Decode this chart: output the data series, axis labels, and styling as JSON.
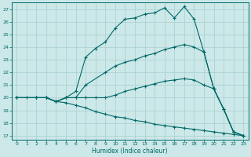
{
  "xlabel": "Humidex (Indice chaleur)",
  "bg_color": "#cce8e8",
  "grid_color": "#a8cece",
  "line_color": "#006868",
  "xlim": [
    -0.5,
    23.5
  ],
  "ylim": [
    16.7,
    27.5
  ],
  "yticks": [
    17,
    18,
    19,
    20,
    21,
    22,
    23,
    24,
    25,
    26,
    27
  ],
  "xticks": [
    0,
    1,
    2,
    3,
    4,
    5,
    6,
    7,
    8,
    9,
    10,
    11,
    12,
    13,
    14,
    15,
    16,
    17,
    18,
    19,
    20,
    21,
    22,
    23
  ],
  "line1_x": [
    0,
    1,
    2,
    3,
    4,
    5,
    6,
    7,
    8,
    9,
    10,
    11,
    12,
    13,
    14,
    15,
    16,
    17,
    18,
    19,
    20,
    21,
    22,
    23
  ],
  "line1_y": [
    20.0,
    20.0,
    20.0,
    20.0,
    19.7,
    20.0,
    20.5,
    23.2,
    23.9,
    24.4,
    25.5,
    26.2,
    26.3,
    26.6,
    26.7,
    27.1,
    26.3,
    27.2,
    26.2,
    23.6,
    20.7,
    19.1,
    17.3,
    17.0
  ],
  "line2_x": [
    0,
    2,
    3,
    4,
    5,
    6,
    7,
    9,
    10,
    11,
    12,
    13,
    14,
    15,
    16,
    17,
    18,
    19,
    20,
    21,
    22,
    23
  ],
  "line2_y": [
    20.0,
    20.0,
    20.0,
    19.7,
    20.0,
    20.0,
    21.0,
    22.0,
    22.5,
    22.8,
    23.0,
    23.3,
    23.5,
    23.8,
    24.0,
    24.2,
    24.0,
    23.6,
    20.7,
    19.1,
    17.3,
    17.0
  ],
  "line3_x": [
    0,
    2,
    3,
    4,
    5,
    6,
    7,
    8,
    9,
    10,
    11,
    12,
    13,
    14,
    15,
    16,
    17,
    18,
    19,
    20,
    21,
    22,
    23
  ],
  "line3_y": [
    20.0,
    20.0,
    20.0,
    19.7,
    20.0,
    20.0,
    20.0,
    20.0,
    20.0,
    20.2,
    20.5,
    20.7,
    20.9,
    21.1,
    21.3,
    21.4,
    21.5,
    21.4,
    21.0,
    20.7,
    19.1,
    17.3,
    17.0
  ],
  "line4_x": [
    0,
    2,
    3,
    4,
    5,
    6,
    7,
    8,
    9,
    10,
    11,
    12,
    13,
    14,
    15,
    16,
    17,
    18,
    19,
    20,
    21,
    22,
    23
  ],
  "line4_y": [
    20.0,
    20.0,
    20.0,
    19.7,
    19.6,
    19.4,
    19.2,
    18.9,
    18.7,
    18.5,
    18.4,
    18.2,
    18.1,
    17.9,
    17.8,
    17.7,
    17.6,
    17.5,
    17.4,
    17.3,
    17.2,
    17.1,
    17.0
  ]
}
